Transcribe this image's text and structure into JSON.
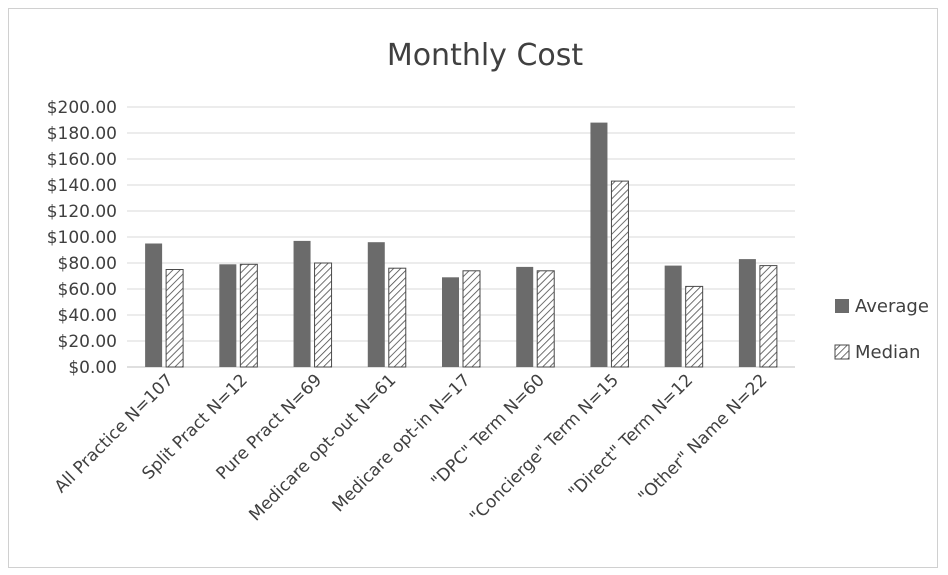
{
  "chart_data": {
    "type": "bar",
    "title": "Monthly Cost",
    "xlabel": "",
    "ylabel": "",
    "ylim": [
      0,
      200
    ],
    "yticks": [
      "$0.00",
      "$20.00",
      "$40.00",
      "$60.00",
      "$80.00",
      "$100.00",
      "$120.00",
      "$140.00",
      "$160.00",
      "$180.00",
      "$200.00"
    ],
    "categories": [
      "All Practice N=107",
      "Split Pract N=12",
      "Pure Pract N=69",
      "Medicare opt-out N=61",
      "Medicare opt-in N=17",
      "\"DPC\" Term N=60",
      "\"Concierge\" Term N=15",
      "\"Direct\" Term N=12",
      "\"Other\" Name N=22"
    ],
    "series": [
      {
        "name": "Average",
        "values": [
          95,
          79,
          97,
          96,
          69,
          77,
          188,
          78,
          83
        ],
        "color": "#6b6b6b",
        "pattern": "solid"
      },
      {
        "name": "Median",
        "values": [
          75,
          79,
          80,
          76,
          74,
          74,
          143,
          62,
          78
        ],
        "color": "#4a4a4a",
        "pattern": "diagonal-hatch"
      }
    ],
    "grid": true,
    "legend": "right"
  }
}
